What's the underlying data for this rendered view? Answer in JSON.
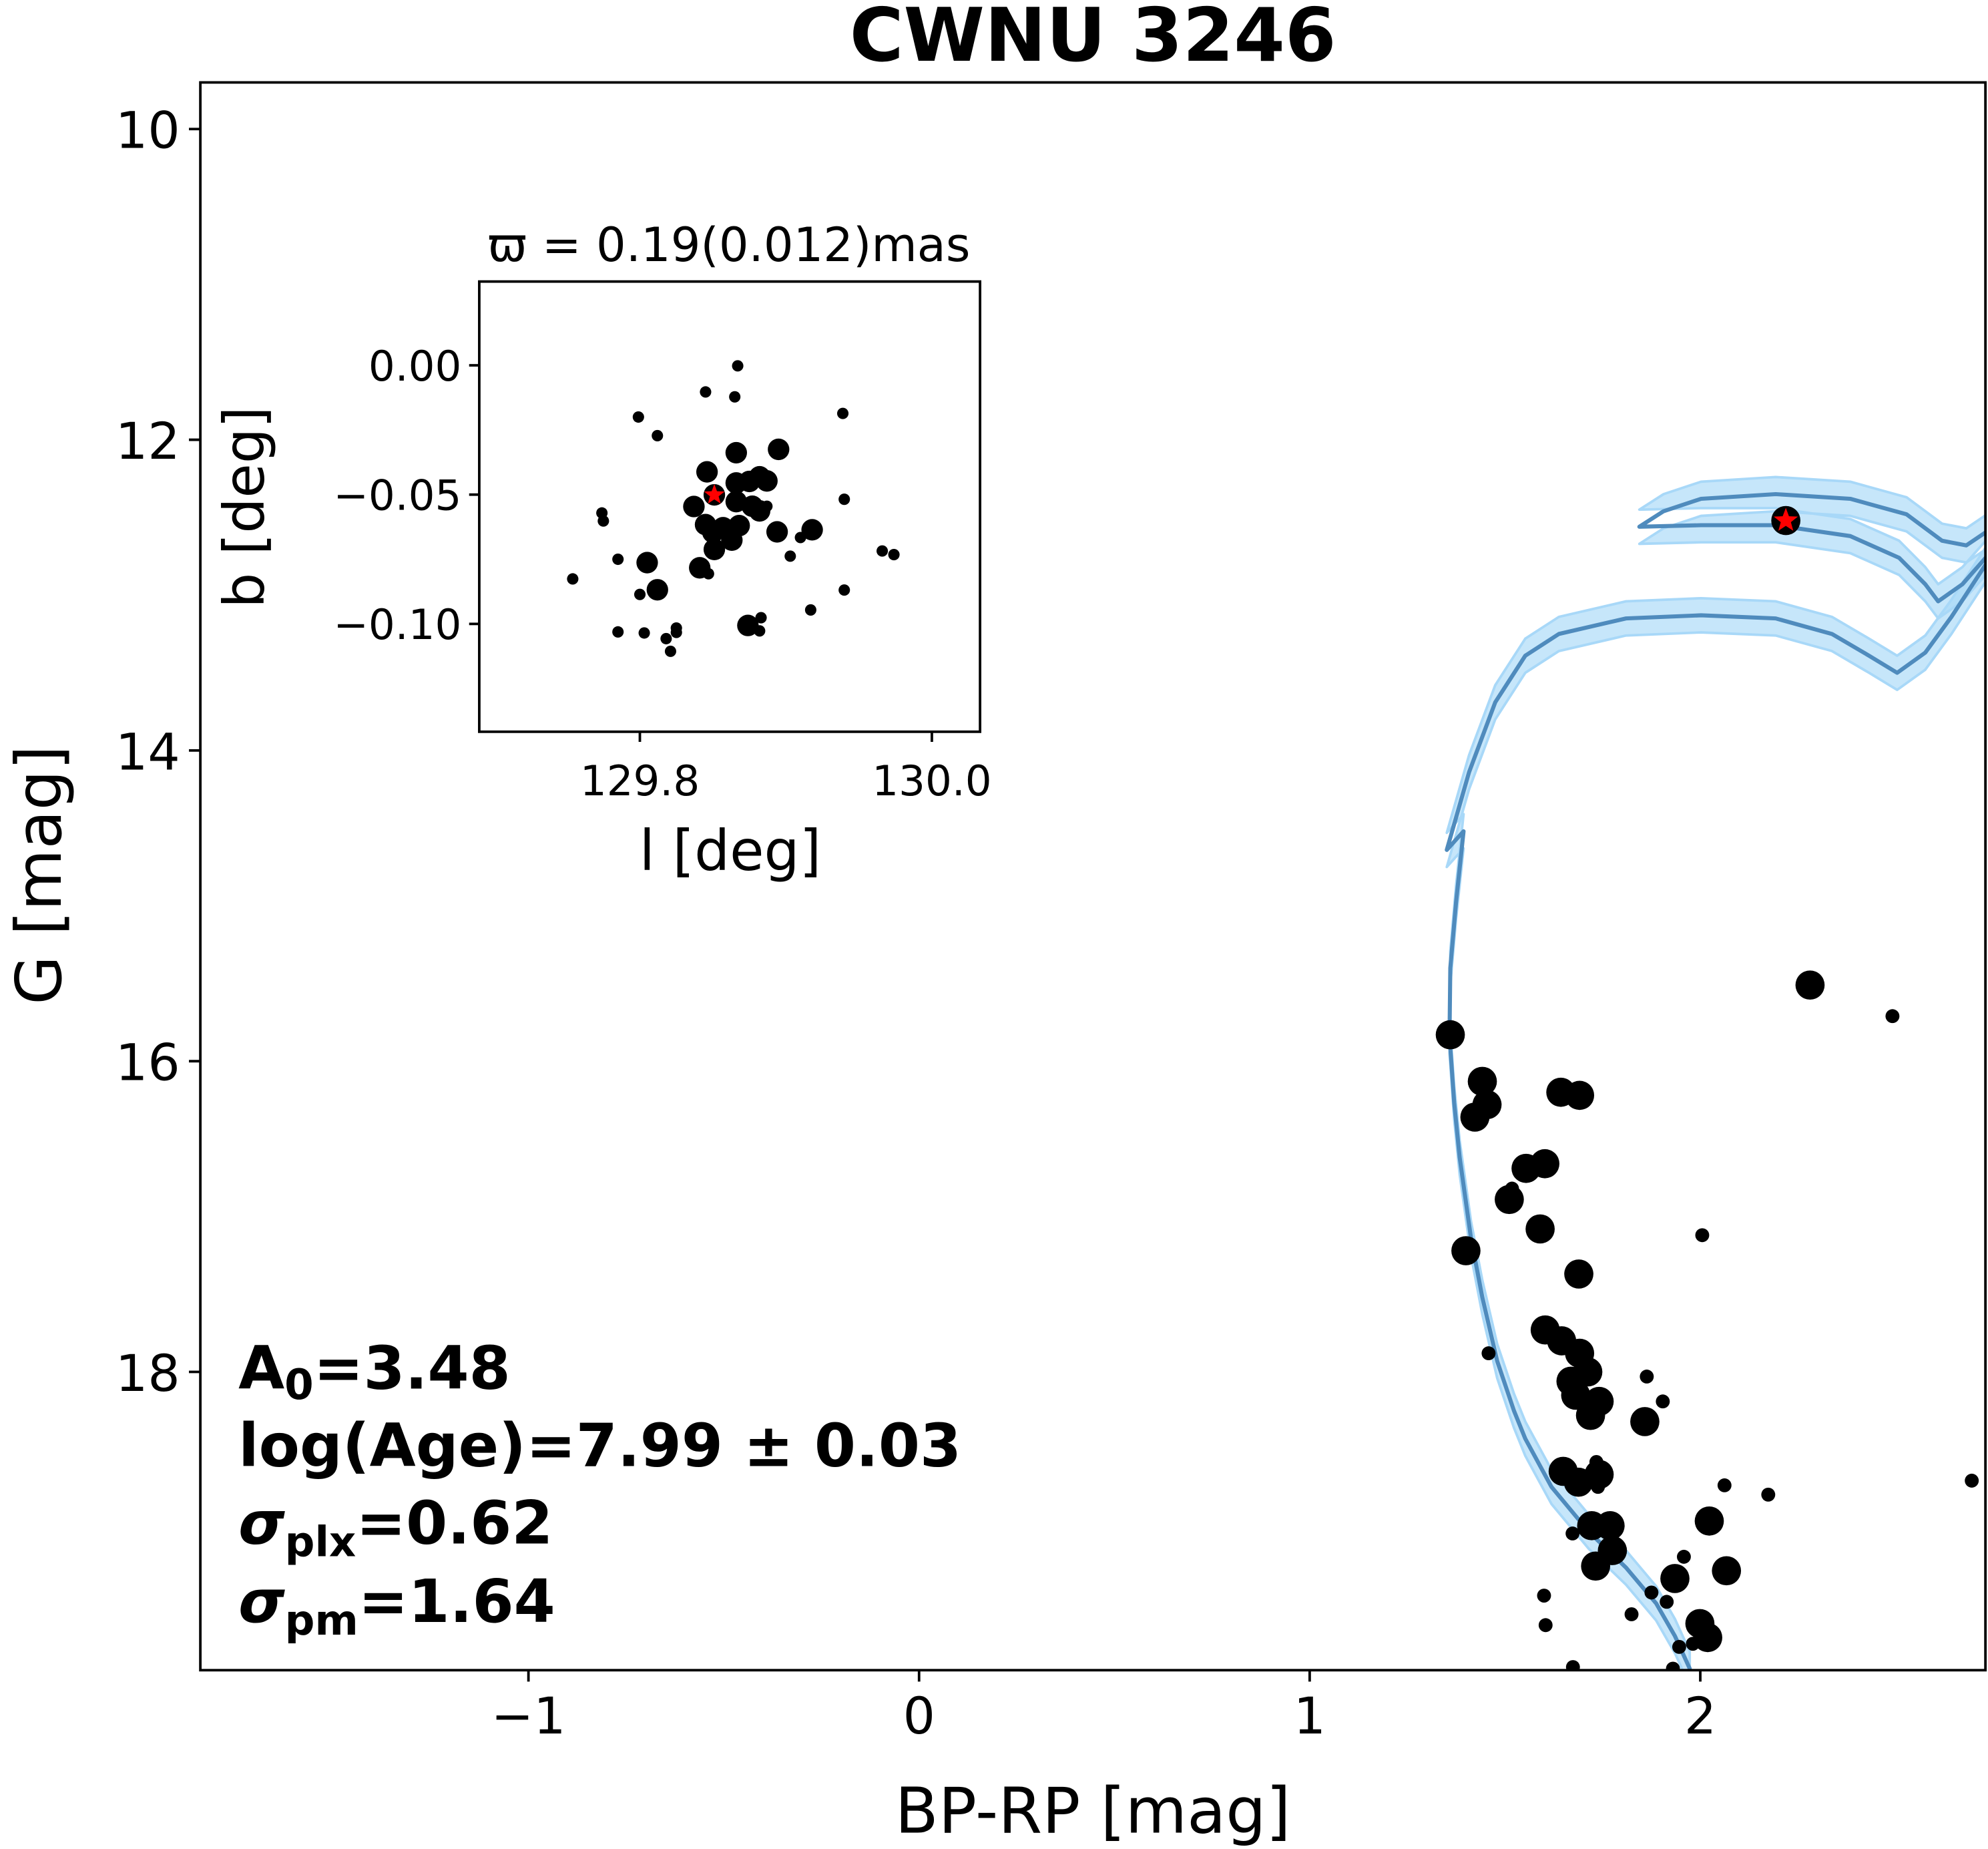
{
  "chart_data": [
    {
      "type": "scatter",
      "title": "CWNU 3246",
      "xlabel": "BP-RP [mag]",
      "ylabel": "G [mag]",
      "xlim": [
        -1.84,
        2.73
      ],
      "ylim": [
        19.92,
        9.7
      ],
      "y_inverted": true,
      "xticks": [
        -1,
        0,
        1,
        2
      ],
      "xtick_labels": [
        "−1",
        "0",
        "1",
        "2"
      ],
      "yticks": [
        10,
        12,
        14,
        16,
        18
      ],
      "ytick_labels": [
        "10",
        "12",
        "14",
        "16",
        "18"
      ],
      "grid": false,
      "colors": {
        "points": "#000000",
        "isochrone": "#4f8bbd",
        "band": "#a8d8f8",
        "highlight_star": "#ff0000"
      },
      "annotations": {
        "a0": {
          "sym": "A",
          "sub": "0",
          "val": "=3.48"
        },
        "age": {
          "text": "log(Age)=7.99 ± 0.03"
        },
        "plx": {
          "sym": "σ",
          "sub": "plx",
          "val": "=0.62"
        },
        "pm": {
          "sym": "σ",
          "sub": "pm",
          "val": "=1.64"
        }
      },
      "members": [
        [
          2.281,
          15.51,
          1
        ],
        [
          2.492,
          15.71,
          0
        ],
        [
          1.36,
          15.83,
          1
        ],
        [
          1.442,
          16.13,
          1
        ],
        [
          1.454,
          16.28,
          1
        ],
        [
          1.423,
          16.36,
          1
        ],
        [
          1.643,
          16.2,
          1
        ],
        [
          1.691,
          16.22,
          1
        ],
        [
          1.554,
          16.69,
          1
        ],
        [
          1.602,
          16.66,
          1
        ],
        [
          1.518,
          16.82,
          0
        ],
        [
          1.511,
          16.89,
          1
        ],
        [
          1.59,
          17.08,
          1
        ],
        [
          1.4,
          17.22,
          1
        ],
        [
          2.005,
          17.12,
          0
        ],
        [
          1.689,
          17.37,
          1
        ],
        [
          1.603,
          17.73,
          1
        ],
        [
          1.645,
          17.8,
          1
        ],
        [
          1.458,
          17.88,
          0
        ],
        [
          1.691,
          17.88,
          1
        ],
        [
          1.712,
          18.0,
          1
        ],
        [
          1.669,
          18.06,
          1
        ],
        [
          1.681,
          18.15,
          1
        ],
        [
          1.741,
          18.19,
          1
        ],
        [
          1.719,
          18.28,
          1
        ],
        [
          1.863,
          18.03,
          0
        ],
        [
          1.904,
          18.19,
          0
        ],
        [
          1.858,
          18.32,
          1
        ],
        [
          1.649,
          18.64,
          1
        ],
        [
          1.688,
          18.71,
          1
        ],
        [
          1.734,
          18.58,
          0
        ],
        [
          1.741,
          18.66,
          1
        ],
        [
          1.738,
          18.74,
          0
        ],
        [
          2.062,
          18.73,
          0
        ],
        [
          2.174,
          18.79,
          0
        ],
        [
          2.695,
          18.7,
          0
        ],
        [
          2.023,
          18.96,
          1
        ],
        [
          1.722,
          18.99,
          1
        ],
        [
          1.769,
          18.99,
          1
        ],
        [
          1.673,
          19.04,
          0
        ],
        [
          1.775,
          19.15,
          1
        ],
        [
          1.732,
          19.25,
          1
        ],
        [
          1.958,
          19.19,
          0
        ],
        [
          1.935,
          19.33,
          1
        ],
        [
          2.067,
          19.28,
          1
        ],
        [
          1.875,
          19.42,
          0
        ],
        [
          1.914,
          19.48,
          0
        ],
        [
          1.6,
          19.44,
          0
        ],
        [
          1.604,
          19.63,
          0
        ],
        [
          1.824,
          19.56,
          0
        ],
        [
          1.999,
          19.62,
          1
        ],
        [
          2.019,
          19.71,
          1
        ],
        [
          1.946,
          19.77,
          0
        ],
        [
          1.981,
          19.75,
          0
        ],
        [
          1.674,
          19.9,
          0
        ],
        [
          1.93,
          19.91,
          0
        ]
      ],
      "highlight": [
        2.219,
        12.52
      ],
      "isochrone_band_halfwidth_mag": 0.11,
      "isochrone": [
        [
          [
            1.973,
            19.91
          ],
          [
            1.935,
            19.7
          ],
          [
            1.887,
            19.49
          ],
          [
            1.81,
            19.26
          ],
          [
            1.715,
            19.03
          ],
          [
            1.619,
            18.74
          ],
          [
            1.552,
            18.43
          ],
          [
            1.523,
            18.25
          ],
          [
            1.48,
            17.93
          ],
          [
            1.442,
            17.52
          ],
          [
            1.413,
            17.14
          ],
          [
            1.384,
            16.62
          ],
          [
            1.37,
            16.27
          ],
          [
            1.358,
            15.84
          ],
          [
            1.36,
            15.4
          ],
          [
            1.375,
            14.97
          ],
          [
            1.394,
            14.52
          ],
          [
            1.351,
            14.64
          ],
          [
            1.408,
            14.14
          ],
          [
            1.475,
            13.69
          ],
          [
            1.552,
            13.39
          ],
          [
            1.638,
            13.25
          ],
          [
            1.81,
            13.15
          ],
          [
            2.002,
            13.13
          ],
          [
            2.193,
            13.15
          ],
          [
            2.337,
            13.25
          ],
          [
            2.432,
            13.39
          ],
          [
            2.504,
            13.5
          ],
          [
            2.576,
            13.37
          ],
          [
            2.643,
            13.14
          ],
          [
            2.734,
            12.79
          ]
        ],
        [
          [
            2.734,
            12.59
          ],
          [
            2.681,
            12.68
          ],
          [
            2.619,
            12.65
          ],
          [
            2.528,
            12.48
          ],
          [
            2.384,
            12.38
          ],
          [
            2.193,
            12.35
          ],
          [
            2.002,
            12.38
          ],
          [
            1.906,
            12.46
          ],
          [
            1.844,
            12.56
          ],
          [
            2.002,
            12.55
          ],
          [
            2.193,
            12.55
          ],
          [
            2.384,
            12.62
          ],
          [
            2.509,
            12.76
          ],
          [
            2.576,
            12.93
          ],
          [
            2.609,
            13.04
          ],
          [
            2.671,
            12.93
          ],
          [
            2.734,
            12.75
          ]
        ]
      ]
    },
    {
      "type": "scatter",
      "title": "ϖ = 0.19(0.012)mas",
      "xlabel": "l [deg]",
      "ylabel": "b [deg]",
      "xlim": [
        129.69,
        130.033
      ],
      "ylim": [
        -0.1417,
        0.0324
      ],
      "xticks": [
        129.8,
        130.0
      ],
      "xtick_labels": [
        "129.8",
        "130.0"
      ],
      "yticks": [
        0.0,
        -0.05,
        -0.1
      ],
      "ytick_labels": [
        "0.00",
        "−0.05",
        "−0.10"
      ],
      "grid": false,
      "highlight": [
        129.851,
        -0.0501
      ],
      "members": [
        [
          129.867,
          -0.0002,
          0
        ],
        [
          129.845,
          -0.0103,
          0
        ],
        [
          129.865,
          -0.0122,
          0
        ],
        [
          129.799,
          -0.02,
          0
        ],
        [
          129.812,
          -0.0272,
          0
        ],
        [
          129.939,
          -0.0186,
          0
        ],
        [
          129.866,
          -0.0338,
          1
        ],
        [
          129.895,
          -0.0325,
          1
        ],
        [
          129.846,
          -0.0412,
          1
        ],
        [
          129.866,
          -0.0455,
          1
        ],
        [
          129.875,
          -0.0449,
          1
        ],
        [
          129.882,
          -0.0431,
          1
        ],
        [
          129.887,
          -0.0447,
          1
        ],
        [
          129.851,
          -0.0501,
          1
        ],
        [
          129.837,
          -0.0546,
          1
        ],
        [
          129.866,
          -0.0527,
          1
        ],
        [
          129.877,
          -0.0545,
          1
        ],
        [
          129.882,
          -0.0563,
          1
        ],
        [
          129.887,
          -0.0545,
          0
        ],
        [
          129.94,
          -0.0518,
          0
        ],
        [
          129.845,
          -0.0616,
          1
        ],
        [
          129.868,
          -0.062,
          1
        ],
        [
          129.85,
          -0.0646,
          1
        ],
        [
          129.857,
          -0.0628,
          1
        ],
        [
          129.863,
          -0.0676,
          1
        ],
        [
          129.851,
          -0.0712,
          1
        ],
        [
          129.894,
          -0.0644,
          1
        ],
        [
          129.918,
          -0.0636,
          1
        ],
        [
          129.91,
          -0.0666,
          0
        ],
        [
          129.774,
          -0.0571,
          0
        ],
        [
          129.775,
          -0.0602,
          0
        ],
        [
          129.903,
          -0.0738,
          0
        ],
        [
          129.966,
          -0.0718,
          0
        ],
        [
          129.974,
          -0.0732,
          0
        ],
        [
          129.785,
          -0.075,
          0
        ],
        [
          129.805,
          -0.0763,
          1
        ],
        [
          129.841,
          -0.0783,
          1
        ],
        [
          129.847,
          -0.0806,
          0
        ],
        [
          129.754,
          -0.0826,
          0
        ],
        [
          129.812,
          -0.0868,
          1
        ],
        [
          129.8,
          -0.0886,
          0
        ],
        [
          129.94,
          -0.0869,
          0
        ],
        [
          129.917,
          -0.0946,
          0
        ],
        [
          129.874,
          -0.1006,
          1
        ],
        [
          129.883,
          -0.0976,
          0
        ],
        [
          129.882,
          -0.1027,
          0
        ],
        [
          129.785,
          -0.1031,
          0
        ],
        [
          129.803,
          -0.1035,
          0
        ],
        [
          129.825,
          -0.1016,
          0
        ],
        [
          129.825,
          -0.1033,
          0
        ],
        [
          129.818,
          -0.1057,
          0
        ],
        [
          129.821,
          -0.1106,
          0
        ]
      ]
    }
  ]
}
